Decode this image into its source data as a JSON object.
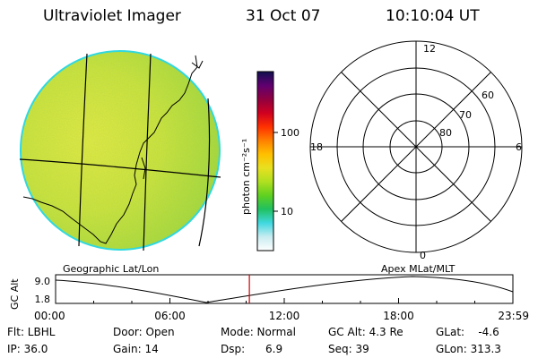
{
  "header": {
    "instrument": "Ultraviolet Imager",
    "date": "31 Oct 07",
    "time": "10:10:04 UT"
  },
  "colors": {
    "disk_fill": "#c9e63a",
    "disk_edge": "#30d8e0",
    "timeline_marker": "#d00000"
  },
  "colorbar": {
    "label": "photon cm⁻²s⁻¹",
    "ticks": [
      "100",
      "10"
    ],
    "stops": [
      "#ffffff",
      "#c8ecf0",
      "#40d8e0",
      "#20c060",
      "#60d020",
      "#b0e020",
      "#e8e020",
      "#ffc000",
      "#ff8000",
      "#ff3000",
      "#d00020",
      "#900040",
      "#600070",
      "#101050"
    ]
  },
  "geo_panel": {
    "label": "Geographic Lat/Lon",
    "icons": [
      "earth-disk-image",
      "coastline-lines",
      "lat-lon-grid-lines"
    ]
  },
  "polar_plot": {
    "label": "Apex MLat/MLT",
    "mlt_labels": {
      "top": "12",
      "bottom": "0",
      "left": "18",
      "right": "6"
    },
    "mlat_labels": [
      "60",
      "70",
      "80"
    ]
  },
  "timeline": {
    "ylabel": "GC Alt",
    "ymax": "9.0",
    "ymin": "1.8",
    "xticks": [
      "00:00",
      "06:00",
      "12:00",
      "18:00",
      "23:59"
    ],
    "current_hour": 10.17
  },
  "info": {
    "filter": "Flt: LBHL",
    "ip": "IP: 36.0",
    "door": "Door: Open",
    "gain": "Gain: 14",
    "mode": "Mode: Normal",
    "dsp": "Dsp:      6.9",
    "gc_alt": "GC Alt: 4.3 Re",
    "seq": "Seq: 39",
    "glat": "GLat:    -4.6",
    "glon": "GLon: 313.3"
  }
}
